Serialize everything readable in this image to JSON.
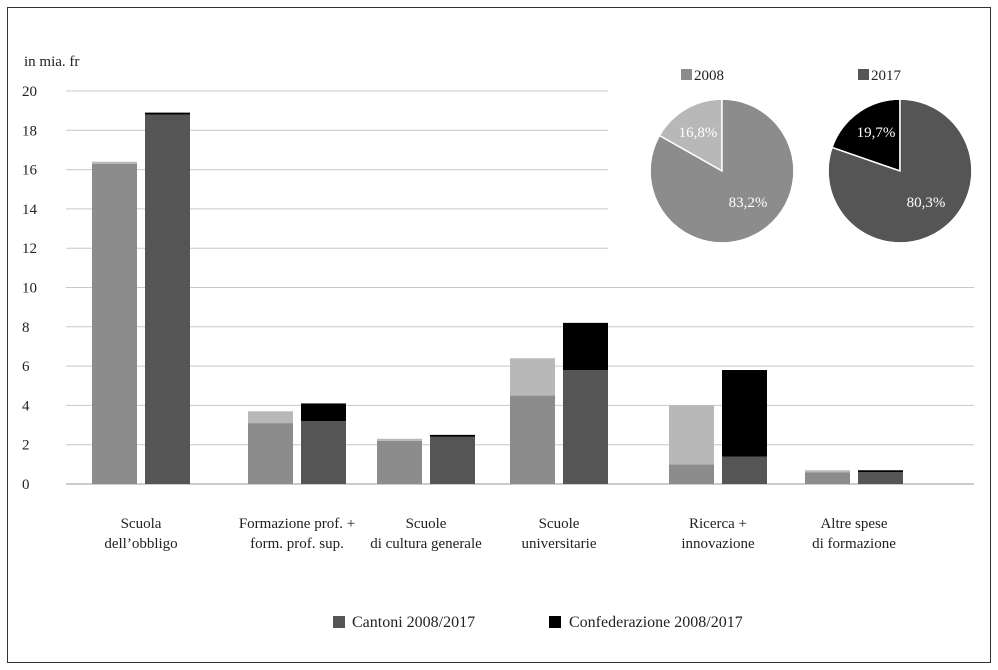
{
  "chart_data": {
    "type": "bar",
    "ylabel": "in mia. fr",
    "ylim": [
      0,
      20
    ],
    "y_ticks": [
      0,
      2,
      4,
      6,
      8,
      10,
      12,
      14,
      16,
      18,
      20
    ],
    "grid": true,
    "categories": [
      [
        "Scuola",
        "dell’obbligo"
      ],
      [
        "Formazione prof. +",
        "form. prof. sup."
      ],
      [
        "Scuole",
        "di cultura generale"
      ],
      [
        "Scuole",
        "universitarie"
      ],
      [
        "Ricerca +",
        "innovazione"
      ],
      [
        "Altre spese",
        "di formazione"
      ]
    ],
    "years": [
      "2008",
      "2017"
    ],
    "series": [
      {
        "name": "Cantoni 2008/2017",
        "values_2008": [
          16.3,
          3.1,
          2.2,
          4.5,
          1.0,
          0.6
        ],
        "values_2017": [
          18.8,
          3.2,
          2.4,
          5.8,
          1.4,
          0.6
        ]
      },
      {
        "name": "Confederazione 2008/2017",
        "values_2008": [
          0.1,
          0.6,
          0.1,
          1.9,
          3.0,
          0.1
        ],
        "values_2017": [
          0.1,
          0.9,
          0.1,
          2.4,
          4.4,
          0.1
        ]
      }
    ],
    "legend": {
      "position": "bottom",
      "items": [
        "Cantoni 2008/2017",
        "Confederazione 2008/2017"
      ]
    },
    "pies": [
      {
        "year": "2008",
        "legend_label": "2008",
        "slices": [
          {
            "label": "83,2%",
            "value": 83.2
          },
          {
            "label": "16,8%",
            "value": 16.8
          }
        ]
      },
      {
        "year": "2017",
        "legend_label": "2017",
        "slices": [
          {
            "label": "80,3%",
            "value": 80.3
          },
          {
            "label": "19,7%",
            "value": 19.7
          }
        ]
      }
    ]
  },
  "colors": {
    "cantoni_2008": "#8c8c8c",
    "confed_2008": "#b8b8b8",
    "cantoni_2017": "#555555",
    "confed_2017": "#000000",
    "grid": "#c8c8c8",
    "axis": "#999999"
  }
}
